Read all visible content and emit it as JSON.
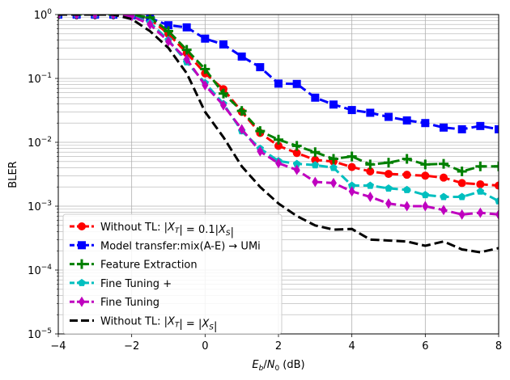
{
  "chart_data": {
    "type": "line",
    "xlabel": "E_b/N_0 (dB)",
    "ylabel": "BLER",
    "xlim": [
      -4,
      8
    ],
    "ylim": [
      1e-05,
      1
    ],
    "yscale": "log",
    "grid": true,
    "legend_position": "lower-left",
    "x_ticks": [
      -4,
      -2,
      0,
      2,
      4,
      6,
      8
    ],
    "x_tick_labels": [
      "−4",
      "−2",
      "0",
      "2",
      "4",
      "6",
      "8"
    ],
    "y_ticks": [
      1e-05,
      0.0001,
      0.001,
      0.01,
      0.1,
      1
    ],
    "y_tick_labels": [
      {
        "base": "10",
        "exp": "−5"
      },
      {
        "base": "10",
        "exp": "−4"
      },
      {
        "base": "10",
        "exp": "−3"
      },
      {
        "base": "10",
        "exp": "−2"
      },
      {
        "base": "10",
        "exp": "−1"
      },
      {
        "base": "10",
        "exp": "0"
      }
    ],
    "series": [
      {
        "name": "Without TL: |X_T| = 0.1|X_S|",
        "color": "#ff0000",
        "marker": "circle",
        "dash": "dashed",
        "x": [
          -4,
          -3.5,
          -3,
          -2.5,
          -2,
          -1.5,
          -1,
          -0.5,
          0,
          0.5,
          1,
          1.5,
          2,
          2.5,
          3,
          3.5,
          4,
          4.5,
          5,
          5.5,
          6,
          6.5,
          7,
          7.5,
          8
        ],
        "y": [
          1,
          1,
          1,
          1,
          0.98,
          0.85,
          0.5,
          0.25,
          0.12,
          0.068,
          0.03,
          0.014,
          0.0088,
          0.0068,
          0.0053,
          0.005,
          0.0041,
          0.0035,
          0.0032,
          0.0031,
          0.003,
          0.0028,
          0.0023,
          0.0022,
          0.0021
        ]
      },
      {
        "name": "Model transfer:mix(A-E) → UMi",
        "color": "#0000ff",
        "marker": "square",
        "dash": "dashed",
        "x": [
          -4,
          -3.5,
          -3,
          -2.5,
          -2,
          -1.5,
          -1,
          -0.5,
          0,
          0.5,
          1,
          1.5,
          2,
          2.5,
          3,
          3.5,
          4,
          4.5,
          5,
          5.5,
          6,
          6.5,
          7,
          7.5,
          8
        ],
        "y": [
          1,
          1,
          1,
          1,
          0.97,
          0.88,
          0.68,
          0.63,
          0.42,
          0.34,
          0.22,
          0.15,
          0.083,
          0.082,
          0.05,
          0.039,
          0.032,
          0.029,
          0.025,
          0.022,
          0.02,
          0.017,
          0.016,
          0.018,
          0.016
        ]
      },
      {
        "name": "Feature Extraction",
        "color": "#008000",
        "marker": "plus",
        "dash": "dashed",
        "x": [
          -4,
          -3.5,
          -3,
          -2.5,
          -2,
          -1.5,
          -1,
          -0.5,
          0,
          0.5,
          1,
          1.5,
          2,
          2.5,
          3,
          3.5,
          4,
          4.5,
          5,
          5.5,
          6,
          6.5,
          7,
          7.5,
          8
        ],
        "y": [
          1,
          1,
          1,
          1,
          0.98,
          0.9,
          0.55,
          0.28,
          0.14,
          0.058,
          0.031,
          0.015,
          0.011,
          0.0088,
          0.007,
          0.0055,
          0.006,
          0.0045,
          0.0048,
          0.0055,
          0.0045,
          0.0046,
          0.0035,
          0.0042,
          0.0042
        ]
      },
      {
        "name": "Fine Tuning +",
        "color": "#00bfbf",
        "marker": "pentagon",
        "dash": "dashed",
        "x": [
          -4,
          -3.5,
          -3,
          -2.5,
          -2,
          -1.5,
          -1,
          -0.5,
          0,
          0.5,
          1,
          1.5,
          2,
          2.5,
          3,
          3.5,
          4,
          4.5,
          5,
          5.5,
          6,
          6.5,
          7,
          7.5,
          8
        ],
        "y": [
          1,
          1,
          1,
          1,
          0.95,
          0.75,
          0.4,
          0.18,
          0.085,
          0.04,
          0.015,
          0.008,
          0.0051,
          0.0046,
          0.0044,
          0.004,
          0.0021,
          0.0021,
          0.0019,
          0.0018,
          0.0015,
          0.0014,
          0.0014,
          0.0017,
          0.0012
        ]
      },
      {
        "name": "Fine Tuning",
        "color": "#bf00bf",
        "marker": "diamond",
        "dash": "dashed",
        "x": [
          -4,
          -3.5,
          -3,
          -2.5,
          -2,
          -1.5,
          -1,
          -0.5,
          0,
          0.5,
          1,
          1.5,
          2,
          2.5,
          3,
          3.5,
          4,
          4.5,
          5,
          5.5,
          6,
          6.5,
          7,
          7.5,
          8
        ],
        "y": [
          1,
          1,
          1,
          1,
          0.95,
          0.7,
          0.38,
          0.2,
          0.078,
          0.038,
          0.016,
          0.0072,
          0.0047,
          0.0037,
          0.0024,
          0.0023,
          0.0017,
          0.0014,
          0.0011,
          0.001,
          0.001,
          0.00087,
          0.00074,
          0.00079,
          0.00074
        ]
      },
      {
        "name": "Without TL: |X_T| = |X_S|",
        "color": "#000000",
        "marker": "none",
        "dash": "dashed",
        "x": [
          -4,
          -3.5,
          -3,
          -2.5,
          -2,
          -1.5,
          -1,
          -0.5,
          0,
          0.5,
          1,
          1.5,
          2,
          2.5,
          3,
          3.5,
          4,
          4.5,
          5,
          5.5,
          6,
          6.5,
          7,
          7.5,
          8
        ],
        "y": [
          1,
          1,
          1,
          1,
          0.85,
          0.55,
          0.3,
          0.12,
          0.03,
          0.012,
          0.0042,
          0.002,
          0.0011,
          0.0007,
          0.0005,
          0.00043,
          0.00044,
          0.0003,
          0.00029,
          0.00028,
          0.00024,
          0.00028,
          0.00021,
          0.00019,
          0.00022
        ]
      }
    ]
  }
}
